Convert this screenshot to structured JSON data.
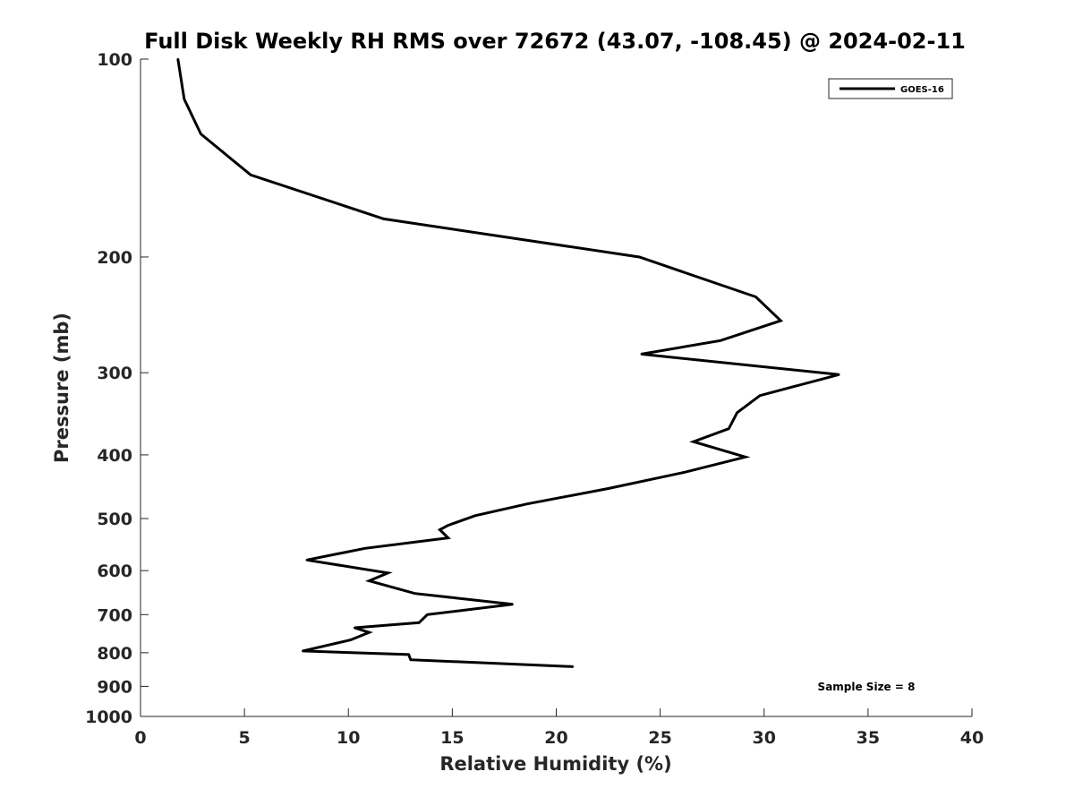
{
  "chart_data": {
    "type": "line",
    "title": "Full Disk Weekly RH RMS over 72672 (43.07, -108.45) @ 2024-02-11",
    "xlabel": "Relative Humidity (%)",
    "ylabel": "Pressure (mb)",
    "xlim": [
      0,
      40
    ],
    "ylim": [
      100,
      1000
    ],
    "y_scale": "log",
    "y_reversed": true,
    "x_ticks": [
      0,
      5,
      10,
      15,
      20,
      25,
      30,
      35,
      40
    ],
    "y_ticks": [
      100,
      200,
      300,
      400,
      500,
      600,
      700,
      800,
      900,
      1000
    ],
    "grid": false,
    "legend_position": "top-right",
    "annotation": "Sample Size = 8",
    "series": [
      {
        "name": "GOES-16",
        "color": "#000000",
        "x": [
          1.8,
          2.1,
          2.9,
          5.3,
          11.7,
          24.0,
          29.6,
          30.8,
          27.9,
          24.1,
          33.6,
          29.8,
          28.7,
          28.3,
          26.6,
          29.1,
          26.2,
          22.5,
          18.6,
          16.1,
          14.8,
          14.4,
          14.8,
          10.8,
          8.0,
          11.9,
          11.0,
          13.2,
          17.9,
          13.8,
          13.4,
          10.3,
          11.0,
          10.1,
          7.8,
          12.9,
          13.0,
          20.8
        ],
        "y": [
          100,
          115,
          130,
          150,
          175,
          200,
          230,
          250,
          268,
          281,
          302,
          325,
          345,
          365,
          382,
          403,
          425,
          450,
          475,
          495,
          512,
          520,
          535,
          555,
          578,
          605,
          622,
          650,
          675,
          700,
          720,
          733,
          745,
          765,
          795,
          805,
          820,
          840
        ]
      }
    ]
  }
}
